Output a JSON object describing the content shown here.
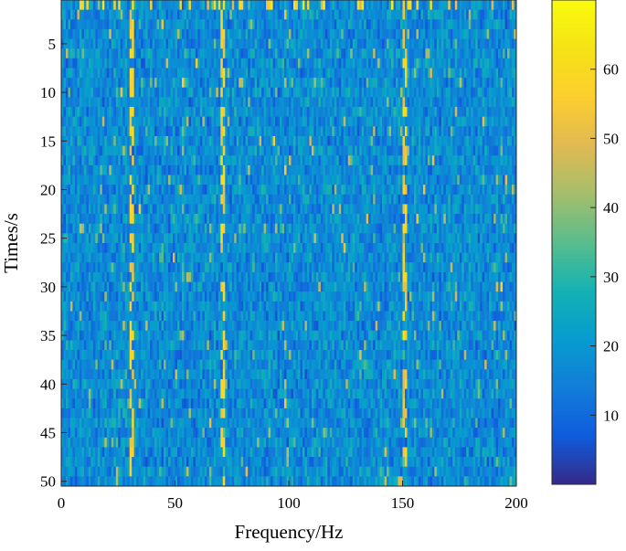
{
  "chart_data": {
    "type": "heatmap",
    "title": "",
    "xlabel": "Frequency/Hz",
    "ylabel": "Times/s",
    "x_range": [
      0,
      200
    ],
    "y_range": [
      1,
      50
    ],
    "y_reversed": true,
    "x_ticks": [
      0,
      50,
      100,
      150,
      200
    ],
    "y_ticks": [
      5,
      10,
      15,
      20,
      25,
      30,
      35,
      40,
      45,
      50
    ],
    "color_range": [
      0,
      70
    ],
    "colorbar_ticks": [
      10,
      20,
      30,
      40,
      50,
      60
    ],
    "colormap": "parula",
    "n_time_rows": 50,
    "n_freq_bins": 200,
    "value_scale": "intensity",
    "typical_range": [
      5,
      30
    ],
    "peak_lines_hz": [
      31,
      71,
      151
    ],
    "peak_line_values": [
      50,
      62
    ],
    "max_value": 68,
    "grid": false
  }
}
